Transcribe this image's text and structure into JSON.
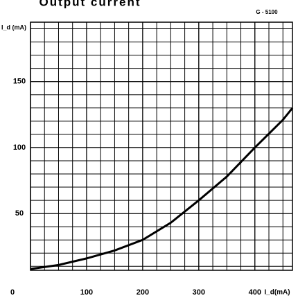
{
  "chart_data": {
    "type": "line",
    "title": "Output current",
    "subtitle": "G - 5100",
    "ylabel": "I_d (mA)",
    "xlabel": "I_d(mA)",
    "x": [
      0,
      50,
      100,
      150,
      200,
      250,
      300,
      350,
      400,
      450,
      467
    ],
    "series": [
      {
        "name": "I_d",
        "color": "#000000",
        "values": [
          8,
          11,
          16,
          22,
          30,
          43,
          60,
          78,
          100,
          121,
          130
        ]
      }
    ],
    "xlim": [
      0,
      467
    ],
    "ylim": [
      7,
      195
    ],
    "xticks": [
      0,
      100,
      200,
      300,
      400
    ],
    "yticks": [
      50,
      100,
      150
    ],
    "grid": true
  }
}
